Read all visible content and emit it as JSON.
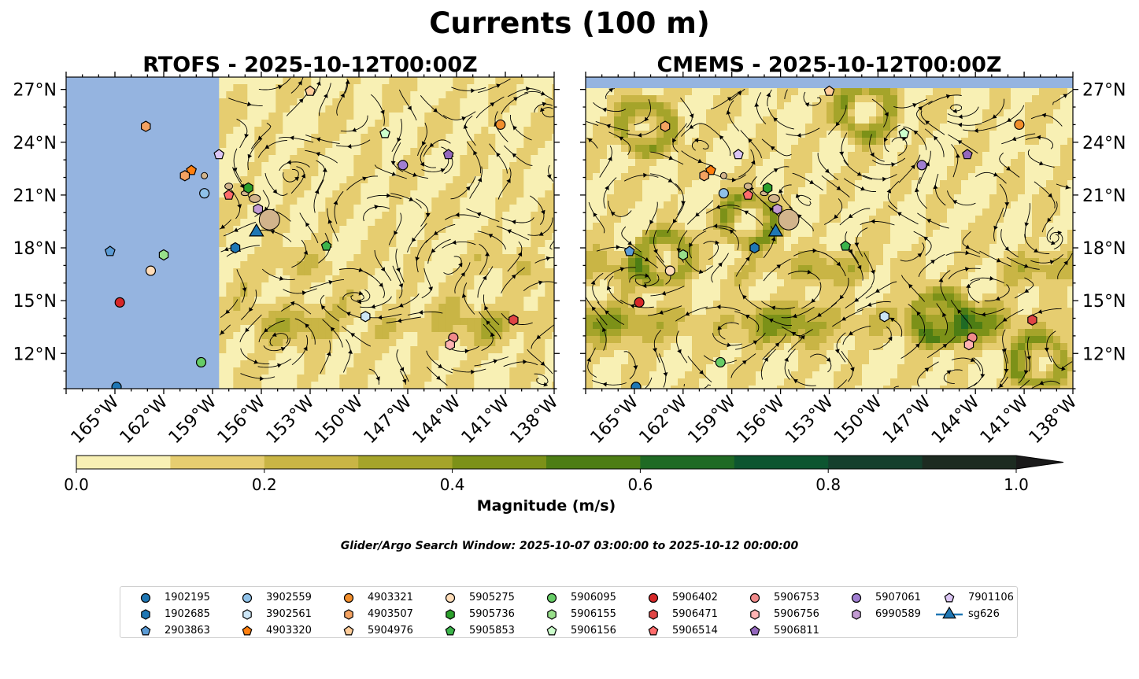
{
  "figure": {
    "suptitle": "Currents (100 m)",
    "search_window": "Glider/Argo Search Window: 2025-10-07 03:00:00 to 2025-10-12 00:00:00"
  },
  "chart_data": [
    {
      "type": "heatmap",
      "title": "RTOFS - 2025-10-12T00:00Z",
      "variable": "current speed with streamlines",
      "xlim": [
        -168,
        -138
      ],
      "ylim": [
        10,
        27.7
      ],
      "x_ticks": [
        "165°W",
        "162°W",
        "159°W",
        "156°W",
        "153°W",
        "150°W",
        "147°W",
        "144°W",
        "141°W",
        "138°W"
      ],
      "y_ticks": [
        "27°N",
        "24°N",
        "21°N",
        "18°N",
        "15°N",
        "12°N"
      ],
      "no_data_west_of_lon": -158.6
    },
    {
      "type": "heatmap",
      "title": "CMEMS - 2025-10-12T00:00Z",
      "variable": "current speed with streamlines",
      "xlim": [
        -168,
        -138
      ],
      "ylim": [
        10,
        27.7
      ],
      "x_ticks": [
        "165°W",
        "162°W",
        "159°W",
        "156°W",
        "153°W",
        "150°W",
        "147°W",
        "144°W",
        "141°W",
        "138°W"
      ],
      "y_ticks": [
        "27°N",
        "24°N",
        "21°N",
        "18°N",
        "15°N",
        "12°N"
      ]
    }
  ],
  "colorbar": {
    "label": "Magnitude (m/s)",
    "ticks": [
      "0.0",
      "0.2",
      "0.4",
      "0.6",
      "0.8",
      "1.0"
    ],
    "range": [
      0,
      1
    ],
    "bins": [
      {
        "lo": 0.0,
        "hi": 0.1,
        "color": "#f8f0b4"
      },
      {
        "lo": 0.1,
        "hi": 0.2,
        "color": "#e6cd70"
      },
      {
        "lo": 0.2,
        "hi": 0.3,
        "color": "#c9b545"
      },
      {
        "lo": 0.3,
        "hi": 0.4,
        "color": "#a5a42a"
      },
      {
        "lo": 0.4,
        "hi": 0.5,
        "color": "#7c9118"
      },
      {
        "lo": 0.5,
        "hi": 0.6,
        "color": "#4d7d14"
      },
      {
        "lo": 0.6,
        "hi": 0.7,
        "color": "#1f6a24"
      },
      {
        "lo": 0.7,
        "hi": 0.8,
        "color": "#0d5530"
      },
      {
        "lo": 0.8,
        "hi": 0.9,
        "color": "#153f2d"
      },
      {
        "lo": 0.9,
        "hi": 1.0,
        "color": "#1d2b21"
      }
    ],
    "extend": "max"
  },
  "colors": {
    "ocean_blue": "#95b4e0",
    "land": "#d2b48c",
    "glider_line": "#1f77b4"
  },
  "platforms": [
    {
      "id": "1902195",
      "marker": "circle",
      "color": "#1f77b4",
      "lon": -164.9,
      "lat": 10.1
    },
    {
      "id": "1902685",
      "marker": "hexagon",
      "color": "#1f77b4",
      "lon": -157.6,
      "lat": 18.0
    },
    {
      "id": "2903863",
      "marker": "pentagon",
      "color": "#5b9bd5",
      "lon": -165.3,
      "lat": 17.8
    },
    {
      "id": "3902559",
      "marker": "circle",
      "color": "#8fc1e8",
      "lon": -159.5,
      "lat": 21.1
    },
    {
      "id": "3902561",
      "marker": "hexagon",
      "color": "#cce6f6",
      "lon": -149.6,
      "lat": 14.1
    },
    {
      "id": "4903320",
      "marker": "pentagon",
      "color": "#ff7f0e",
      "lon": -160.3,
      "lat": 22.4
    },
    {
      "id": "4903321",
      "marker": "circle",
      "color": "#f28e2b",
      "lon": -141.3,
      "lat": 25.0
    },
    {
      "id": "4903507",
      "marker": "hexagon",
      "color": "#f4a261",
      "lon": -163.1,
      "lat": 24.9
    },
    {
      "id": "4903507",
      "marker": "hexagon",
      "color": "#f4a261",
      "lon": -160.7,
      "lat": 22.1
    },
    {
      "id": "5904976",
      "marker": "pentagon",
      "color": "#ffcc99",
      "lon": -153.0,
      "lat": 26.9
    },
    {
      "id": "5905275",
      "marker": "circle",
      "color": "#ffdcb8",
      "lon": -162.8,
      "lat": 16.7
    },
    {
      "id": "5905736",
      "marker": "hexagon",
      "color": "#2ca02c",
      "lon": -156.8,
      "lat": 21.4
    },
    {
      "id": "5905853",
      "marker": "pentagon",
      "color": "#3cb44b",
      "lon": -152.0,
      "lat": 18.1
    },
    {
      "id": "5906095",
      "marker": "circle",
      "color": "#66cc66",
      "lon": -159.7,
      "lat": 11.5
    },
    {
      "id": "5906155",
      "marker": "hexagon",
      "color": "#98df8a",
      "lon": -162.0,
      "lat": 17.6
    },
    {
      "id": "5906156",
      "marker": "pentagon",
      "color": "#ccffcc",
      "lon": -148.4,
      "lat": 24.5
    },
    {
      "id": "5906402",
      "marker": "circle",
      "color": "#d62728",
      "lon": -164.7,
      "lat": 14.9
    },
    {
      "id": "5906471",
      "marker": "hexagon",
      "color": "#e04545",
      "lon": -140.5,
      "lat": 13.9
    },
    {
      "id": "5906514",
      "marker": "pentagon",
      "color": "#ff6b6b",
      "lon": -158.0,
      "lat": 21.0
    },
    {
      "id": "5906753",
      "marker": "circle",
      "color": "#f08a8a",
      "lon": -144.2,
      "lat": 12.9
    },
    {
      "id": "5906756",
      "marker": "hexagon",
      "color": "#ffb3b3",
      "lon": -144.4,
      "lat": 12.5
    },
    {
      "id": "5906811",
      "marker": "pentagon",
      "color": "#9467bd",
      "lon": -144.5,
      "lat": 23.3
    },
    {
      "id": "5907061",
      "marker": "circle",
      "color": "#a07ed1",
      "lon": -147.3,
      "lat": 22.7
    },
    {
      "id": "6990589",
      "marker": "hexagon",
      "color": "#c39bd3",
      "lon": -156.2,
      "lat": 20.2
    },
    {
      "id": "7901106",
      "marker": "pentagon",
      "color": "#dcc6f5",
      "lon": -158.6,
      "lat": 23.3
    },
    {
      "id": "sg626",
      "marker": "triangle",
      "color": "#1f77b4",
      "lon": -156.3,
      "lat": 18.9
    }
  ],
  "legend": {
    "columns": [
      [
        "1902195",
        "1902685",
        "2903863"
      ],
      [
        "3902559",
        "3902561",
        "4903320"
      ],
      [
        "4903321",
        "4903507",
        "5904976"
      ],
      [
        "5905275",
        "5905736",
        "5905853"
      ],
      [
        "5906095",
        "5906155",
        "5906156"
      ],
      [
        "5906402",
        "5906471",
        "5906514"
      ],
      [
        "5906753",
        "5906756",
        "5906811"
      ],
      [
        "5907061",
        "6990589"
      ],
      [
        "7901106",
        "sg626"
      ]
    ],
    "entries": {
      "1902195": {
        "label": "1902195",
        "marker": "circle",
        "color": "#1f77b4"
      },
      "1902685": {
        "label": "1902685",
        "marker": "hexagon",
        "color": "#1f77b4"
      },
      "2903863": {
        "label": "2903863",
        "marker": "pentagon",
        "color": "#5b9bd5"
      },
      "3902559": {
        "label": "3902559",
        "marker": "circle",
        "color": "#8fc1e8"
      },
      "3902561": {
        "label": "3902561",
        "marker": "hexagon",
        "color": "#cce6f6"
      },
      "4903320": {
        "label": "4903320",
        "marker": "pentagon",
        "color": "#ff7f0e"
      },
      "4903321": {
        "label": "4903321",
        "marker": "circle",
        "color": "#f28e2b"
      },
      "4903507": {
        "label": "4903507",
        "marker": "hexagon",
        "color": "#f4a261"
      },
      "5904976": {
        "label": "5904976",
        "marker": "pentagon",
        "color": "#ffcc99"
      },
      "5905275": {
        "label": "5905275",
        "marker": "circle",
        "color": "#ffdcb8"
      },
      "5905736": {
        "label": "5905736",
        "marker": "hexagon",
        "color": "#2ca02c"
      },
      "5905853": {
        "label": "5905853",
        "marker": "pentagon",
        "color": "#3cb44b"
      },
      "5906095": {
        "label": "5906095",
        "marker": "circle",
        "color": "#66cc66"
      },
      "5906155": {
        "label": "5906155",
        "marker": "hexagon",
        "color": "#98df8a"
      },
      "5906156": {
        "label": "5906156",
        "marker": "pentagon",
        "color": "#ccffcc"
      },
      "5906402": {
        "label": "5906402",
        "marker": "circle",
        "color": "#d62728"
      },
      "5906471": {
        "label": "5906471",
        "marker": "hexagon",
        "color": "#e04545"
      },
      "5906514": {
        "label": "5906514",
        "marker": "pentagon",
        "color": "#ff6b6b"
      },
      "5906753": {
        "label": "5906753",
        "marker": "circle",
        "color": "#f08a8a"
      },
      "5906756": {
        "label": "5906756",
        "marker": "hexagon",
        "color": "#ffb3b3"
      },
      "5906811": {
        "label": "5906811",
        "marker": "pentagon",
        "color": "#9467bd"
      },
      "5907061": {
        "label": "5907061",
        "marker": "circle",
        "color": "#a07ed1"
      },
      "6990589": {
        "label": "6990589",
        "marker": "hexagon",
        "color": "#c39bd3"
      },
      "7901106": {
        "label": "7901106",
        "marker": "pentagon",
        "color": "#dcc6f5"
      },
      "sg626": {
        "label": "sg626",
        "marker": "triangle",
        "color": "#1f77b4"
      }
    }
  }
}
